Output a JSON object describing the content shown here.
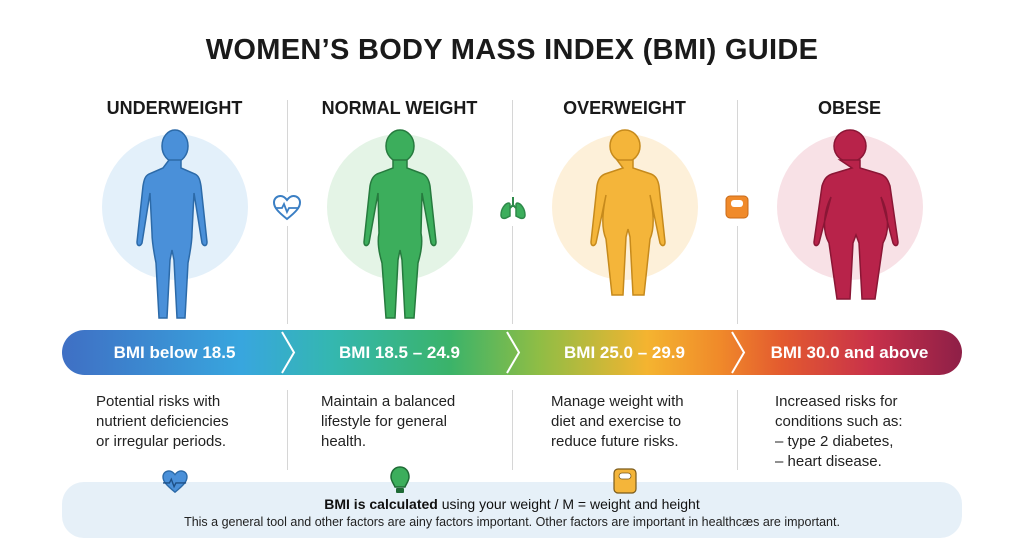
{
  "title": "WOMEN’S BODY MASS INDEX (BMI) GUIDE",
  "categories": [
    {
      "heading": "UNDERWEIGHT",
      "range": "BMI below 18.5",
      "description": [
        "Potential risks with",
        "nutrient deficiencies",
        "or irregular periods."
      ],
      "color": "#4a90d9",
      "bg": "#e3f0fa"
    },
    {
      "heading": "NORMAL WEIGHT",
      "range": "BMI 18.5 – 24.9",
      "description": [
        "Maintain a balanced",
        "lifestyle for general",
        "health."
      ],
      "color": "#3cae5c",
      "bg": "#e4f4e6"
    },
    {
      "heading": "OVERWEIGHT",
      "range": "BMI 25.0 – 29.9",
      "description": [
        "Manage weight with",
        "diet and exercise to",
        "reduce future risks."
      ],
      "color": "#f4b53a",
      "bg": "#fdf0d9"
    },
    {
      "heading": "OBESE",
      "range": "BMI 30.0 and above",
      "description": [
        "Increased risks for",
        "conditions such as:",
        "– type 2 diabetes,",
        "– heart disease."
      ],
      "color": "#b8234a",
      "bg": "#f8e1e6"
    }
  ],
  "icons": [
    "heart-pulse-icon",
    "lungs-icon",
    "scale-icon"
  ],
  "footer": {
    "bold": "BMI is calculated",
    "line1_rest": " using your weight / M = weight and height",
    "line2": "This a general tool and other factors are ainy factors important. Other factors are important in healthcæs are important."
  }
}
